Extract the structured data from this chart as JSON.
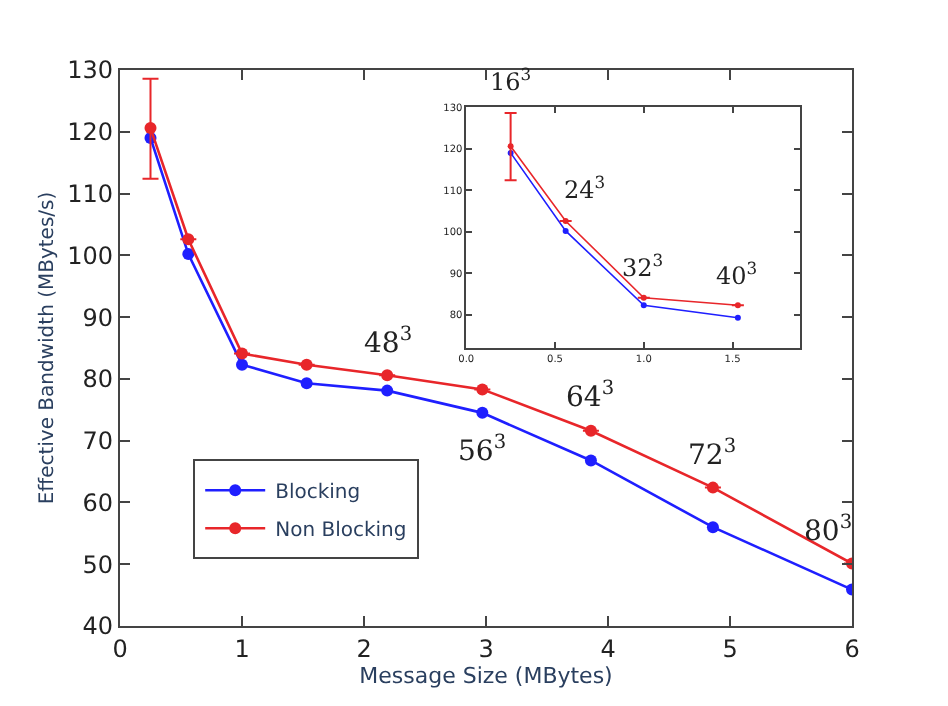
{
  "chart_data": [
    {
      "type": "line",
      "xlabel": "Message Size (MBytes)",
      "ylabel": "Effective Bandwidth (MBytes/s)",
      "x": [
        0.25,
        0.56,
        1.0,
        1.53,
        2.19,
        2.97,
        3.86,
        4.86,
        6.0
      ],
      "series": [
        {
          "name": "Blocking",
          "color": "#1f1fff",
          "values": [
            119.0,
            100.2,
            82.3,
            79.3,
            78.1,
            74.5,
            66.8,
            56.0,
            45.9
          ]
        },
        {
          "name": "Non Blocking",
          "color": "#e8262a",
          "values": [
            120.6,
            102.6,
            84.1,
            82.3,
            80.6,
            78.3,
            71.6,
            62.4,
            50.1
          ],
          "errors": [
            [
              112.4,
              128.6
            ],
            null,
            null,
            null,
            null,
            null,
            null,
            null,
            null
          ]
        }
      ],
      "xlim": [
        0,
        6
      ],
      "xticks": [
        0,
        1,
        2,
        3,
        4,
        5,
        6
      ],
      "ylim": [
        40,
        130
      ],
      "yticks": [
        40,
        50,
        60,
        70,
        80,
        90,
        100,
        110,
        120,
        130
      ],
      "marker": "circle",
      "line_style": "solid",
      "legend": "bottom left",
      "annotations": [
        {
          "text": "48$^{3}$",
          "x": 2.19,
          "y": 80.6
        },
        {
          "text": "56$^{3}$",
          "x": 2.97,
          "y": 74.5
        },
        {
          "text": "64$^{3}$",
          "x": 3.86,
          "y": 71.6
        },
        {
          "text": "72$^{3}$",
          "x": 4.86,
          "y": 62.4
        },
        {
          "text": "80$^{3}$",
          "x": 6.0,
          "y": 50.1
        }
      ]
    },
    {
      "type": "line",
      "x": [
        0.25,
        0.56,
        1.0,
        1.53
      ],
      "series": [
        {
          "color": "#1f1fff",
          "values": [
            119.0,
            100.2,
            82.3,
            79.3
          ]
        },
        {
          "color": "#e8262a",
          "values": [
            120.6,
            102.6,
            84.1,
            82.3
          ],
          "errors": [
            [
              112.4,
              128.6
            ],
            null,
            null,
            null
          ]
        }
      ],
      "xlim": [
        0,
        1.88
      ],
      "xticks": [
        {
          "value": 0,
          "label": "0.0"
        },
        {
          "value": 0.5,
          "label": "0.5"
        },
        {
          "value": 1.0,
          "label": "1.0"
        },
        {
          "value": 1.5,
          "label": "1.5"
        }
      ],
      "ylim": [
        72,
        130
      ],
      "yticks": [
        80,
        90,
        100,
        110,
        120,
        130
      ],
      "marker": "circle",
      "line_style": "solid",
      "annotations": [
        {
          "text": "16$^{3}$",
          "x": 0.25,
          "y": 120.6
        },
        {
          "text": "24$^{3}$",
          "x": 0.56,
          "y": 102.6
        },
        {
          "text": "32$^{3}$",
          "x": 1.0,
          "y": 84.1
        },
        {
          "text": "40$^{3}$",
          "x": 1.53,
          "y": 82.3
        }
      ]
    }
  ]
}
